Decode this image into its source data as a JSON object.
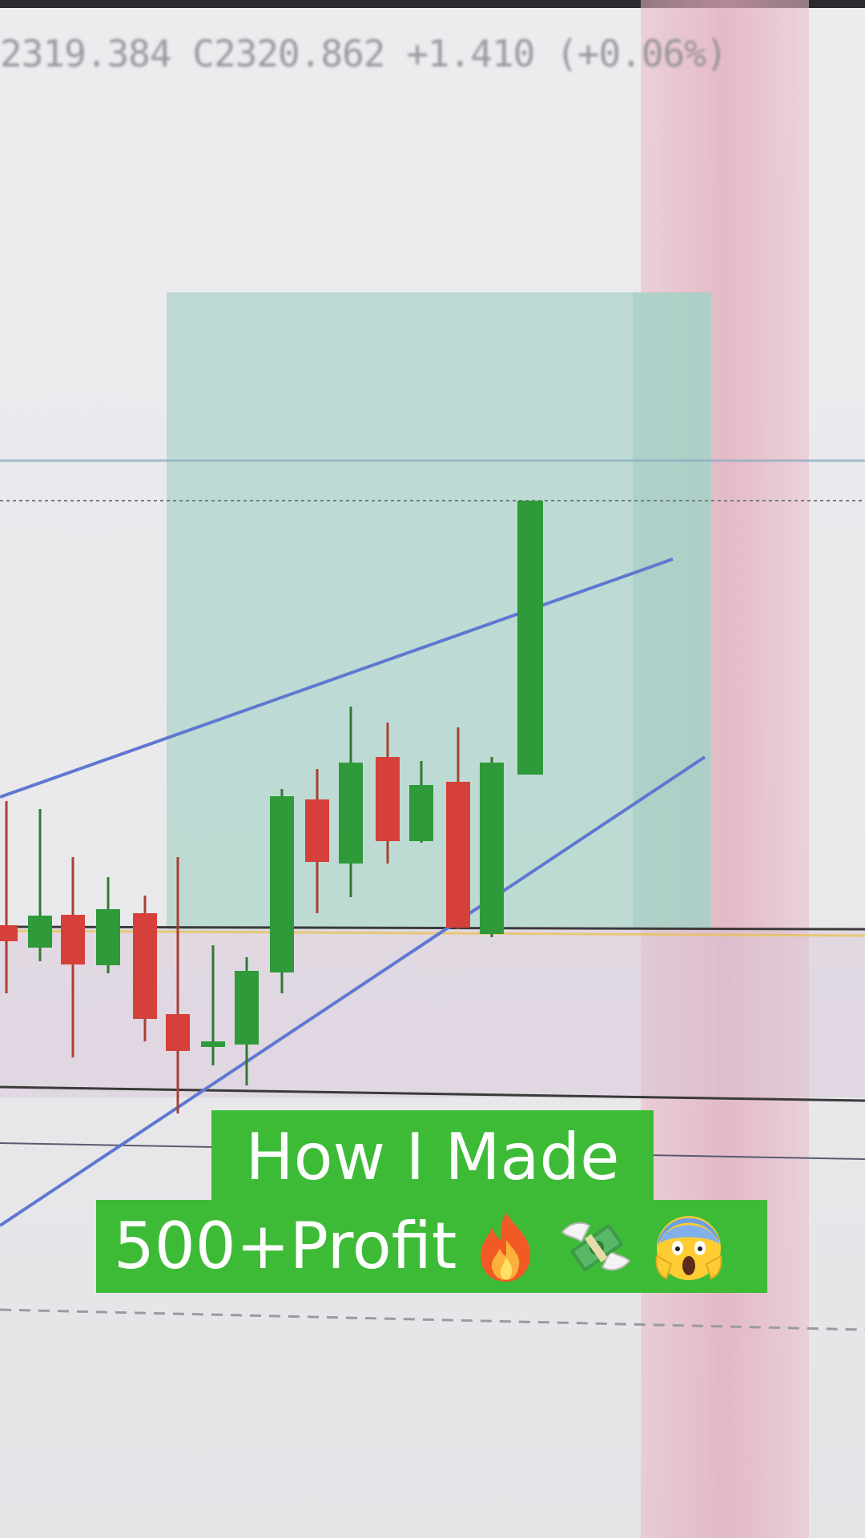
{
  "ohlc_readout": "2319.384 C2320.862 +1.410 (+0.06%)",
  "caption": {
    "line1": "How I Made",
    "line2": "500+Profit"
  },
  "emojis": [
    "fire-emoji",
    "money-with-wings-emoji",
    "screaming-face-emoji"
  ],
  "colors": {
    "bullish_candle": "#2e9a3a",
    "bearish_candle": "#d6403a",
    "target_zone": "#b5d8cf",
    "trendline": "#5f78d0",
    "caption_bg": "#3dbb37",
    "caption_text": "#ffffff"
  }
}
